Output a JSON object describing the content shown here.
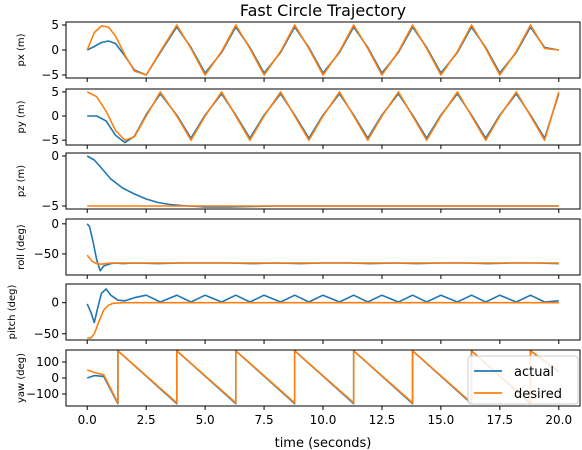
{
  "chart_data": {
    "type": "line",
    "title": "Fast Circle Trajectory",
    "xlabel": "time (seconds)",
    "x_ticks": [
      "0.0",
      "2.5",
      "5.0",
      "7.5",
      "10.0",
      "12.5",
      "15.0",
      "17.5",
      "20.0"
    ],
    "xlim": [
      -0.9,
      20.9
    ],
    "legend": {
      "placement": "bottom-right of last panel",
      "entries": [
        "actual",
        "desired"
      ]
    },
    "colors": {
      "actual": "#1f77b4",
      "desired": "#ff7f0e"
    },
    "panels": [
      {
        "id": "px",
        "ylabel": "px (m)",
        "ylim": [
          -5.6,
          5.6
        ],
        "yticks": [
          5,
          0,
          -5
        ],
        "ytick_labels": [
          "5",
          "0",
          "−5"
        ],
        "series": [
          {
            "name": "actual",
            "x": [
              0,
              0.3,
              0.6,
              0.9,
              1.2,
              1.6,
              2.0,
              2.5,
              3.1,
              3.8,
              4.4,
              5.0,
              5.7,
              6.3,
              6.9,
              7.5,
              8.2,
              8.8,
              9.4,
              10.0,
              10.7,
              11.3,
              11.9,
              12.5,
              13.2,
              13.8,
              14.4,
              15.0,
              15.7,
              16.3,
              16.9,
              17.5,
              18.2,
              18.8,
              19.4,
              20.0
            ],
            "y": [
              0.0,
              0.7,
              1.5,
              1.8,
              1.3,
              -1.2,
              -4.0,
              -5.0,
              -0.5,
              4.6,
              0.5,
              -4.6,
              -0.5,
              4.6,
              0.5,
              -4.6,
              -0.5,
              4.6,
              0.5,
              -4.6,
              -0.5,
              4.6,
              0.5,
              -4.6,
              -0.5,
              4.6,
              0.5,
              -4.6,
              -0.5,
              4.6,
              0.5,
              -4.6,
              -0.5,
              4.6,
              0.5,
              0.0
            ]
          },
          {
            "name": "desired",
            "x": [
              0,
              0.3,
              0.6,
              0.9,
              1.2,
              1.6,
              2.0,
              2.5,
              3.1,
              3.8,
              4.4,
              5.0,
              5.7,
              6.3,
              6.9,
              7.5,
              8.2,
              8.8,
              9.4,
              10.0,
              10.7,
              11.3,
              11.9,
              12.5,
              13.2,
              13.8,
              14.4,
              15.0,
              15.7,
              16.3,
              16.9,
              17.5,
              18.2,
              18.8,
              19.4,
              20.0
            ],
            "y": [
              0.0,
              3.5,
              4.8,
              4.6,
              2.8,
              -1.0,
              -4.2,
              -5.0,
              -0.3,
              5.0,
              0.3,
              -5.0,
              -0.3,
              5.0,
              0.3,
              -5.0,
              -0.3,
              5.0,
              0.3,
              -5.0,
              -0.3,
              5.0,
              0.3,
              -5.0,
              -0.3,
              5.0,
              0.3,
              -5.0,
              -0.3,
              5.0,
              0.3,
              -5.0,
              -0.3,
              5.0,
              0.3,
              0.0
            ]
          }
        ]
      },
      {
        "id": "py",
        "ylabel": "py (m)",
        "ylim": [
          -6.0,
          5.6
        ],
        "yticks": [
          5,
          0,
          -5
        ],
        "ytick_labels": [
          "5",
          "0",
          "−5"
        ],
        "series": [
          {
            "name": "actual",
            "x": [
              0,
              0.4,
              0.8,
              1.2,
              1.6,
              2.0,
              2.5,
              3.1,
              3.8,
              4.4,
              5.0,
              5.7,
              6.3,
              6.9,
              7.5,
              8.2,
              8.8,
              9.4,
              10.0,
              10.7,
              11.3,
              11.9,
              12.5,
              13.2,
              13.8,
              14.4,
              15.0,
              15.7,
              16.3,
              16.9,
              17.5,
              18.2,
              18.8,
              19.4,
              20.0
            ],
            "y": [
              0.0,
              0.0,
              -1.0,
              -4.0,
              -5.5,
              -4.2,
              0.3,
              4.6,
              0.2,
              -4.6,
              0.2,
              4.6,
              0.2,
              -4.6,
              0.2,
              4.6,
              0.2,
              -4.6,
              0.2,
              4.6,
              0.2,
              -4.6,
              0.2,
              4.6,
              0.2,
              -4.6,
              0.2,
              4.6,
              0.2,
              -4.6,
              0.2,
              4.6,
              0.2,
              -4.6,
              4.6
            ]
          },
          {
            "name": "desired",
            "x": [
              0,
              0.4,
              0.8,
              1.2,
              1.6,
              2.0,
              2.5,
              3.1,
              3.8,
              4.4,
              5.0,
              5.7,
              6.3,
              6.9,
              7.5,
              8.2,
              8.8,
              9.4,
              10.0,
              10.7,
              11.3,
              11.9,
              12.5,
              13.2,
              13.8,
              14.4,
              15.0,
              15.7,
              16.3,
              16.9,
              17.5,
              18.2,
              18.8,
              19.4,
              20.0
            ],
            "y": [
              5.0,
              4.0,
              1.0,
              -3.0,
              -5.0,
              -4.3,
              0.0,
              5.0,
              0.0,
              -5.0,
              0.0,
              5.0,
              0.0,
              -5.0,
              0.0,
              5.0,
              0.0,
              -5.0,
              0.0,
              5.0,
              0.0,
              -5.0,
              0.0,
              5.0,
              0.0,
              -5.0,
              0.0,
              5.0,
              0.0,
              -5.0,
              0.0,
              5.0,
              0.0,
              -5.0,
              5.0
            ]
          }
        ]
      },
      {
        "id": "pz",
        "ylabel": "pz (m)",
        "ylim": [
          -5.3,
          0.3
        ],
        "yticks": [
          0,
          -5
        ],
        "ytick_labels": [
          "0",
          "−5"
        ],
        "series": [
          {
            "name": "actual",
            "x": [
              0,
              0.3,
              0.6,
              1.0,
              1.5,
              2.0,
              2.5,
              3.0,
              3.5,
              4.0,
              5.0,
              6.0,
              7.0,
              8.0,
              10.0,
              12.0,
              14.0,
              16.0,
              18.0,
              20.0
            ],
            "y": [
              0.0,
              -0.4,
              -1.2,
              -2.3,
              -3.2,
              -3.8,
              -4.3,
              -4.65,
              -4.85,
              -4.95,
              -5.1,
              -5.1,
              -5.05,
              -5.0,
              -5.0,
              -5.0,
              -5.0,
              -5.0,
              -5.0,
              -5.0
            ]
          },
          {
            "name": "desired",
            "x": [
              0,
              20.0
            ],
            "y": [
              -5.0,
              -5.0
            ]
          }
        ]
      },
      {
        "id": "roll",
        "ylabel": "roll (deg)",
        "ylim": [
          -85,
          8
        ],
        "yticks": [
          0,
          -50
        ],
        "ytick_labels": [
          "0",
          "−50"
        ],
        "series": [
          {
            "name": "actual",
            "x": [
              0,
              0.1,
              0.25,
              0.4,
              0.55,
              0.7,
              0.85,
              1.0,
              1.2,
              1.5,
              2.0,
              3.0,
              4.0,
              5.0,
              6.0,
              7.0,
              8.0,
              9.0,
              10.0,
              11.0,
              12.0,
              13.0,
              14.0,
              15.0,
              16.0,
              17.0,
              18.0,
              19.0,
              20.0
            ],
            "y": [
              0,
              -5,
              -30,
              -60,
              -78,
              -70,
              -68,
              -66,
              -65,
              -66,
              -65,
              -66,
              -65,
              -65,
              -65,
              -66,
              -65,
              -66,
              -65,
              -65,
              -66,
              -65,
              -66,
              -65,
              -65,
              -66,
              -65,
              -65,
              -66
            ]
          },
          {
            "name": "desired",
            "x": [
              0,
              0.2,
              0.4,
              0.6,
              0.8,
              1.0,
              1.5,
              2.0,
              20.0
            ],
            "y": [
              -52,
              -62,
              -66,
              -67,
              -66,
              -65,
              -65,
              -65,
              -65
            ]
          }
        ]
      },
      {
        "id": "pitch",
        "ylabel": "pitch (deg)",
        "ylim": [
          -60,
          30
        ],
        "yticks": [
          0,
          -50
        ],
        "ytick_labels": [
          "0",
          "−50"
        ],
        "series": [
          {
            "name": "actual",
            "x": [
              0,
              0.15,
              0.3,
              0.45,
              0.6,
              0.8,
              1.0,
              1.3,
              1.6,
              2.0,
              2.5,
              3.1,
              3.8,
              4.4,
              5.0,
              5.7,
              6.3,
              6.9,
              7.5,
              8.2,
              8.8,
              9.4,
              10.0,
              10.7,
              11.3,
              11.9,
              12.5,
              13.2,
              13.8,
              14.4,
              15.0,
              15.7,
              16.3,
              16.9,
              17.5,
              18.2,
              18.8,
              19.4,
              20.0
            ],
            "y": [
              -2,
              -15,
              -32,
              -8,
              15,
              22,
              12,
              4,
              3,
              8,
              12,
              1,
              12,
              1,
              12,
              1,
              12,
              1,
              12,
              1,
              12,
              1,
              12,
              1,
              12,
              1,
              12,
              1,
              12,
              1,
              12,
              1,
              12,
              1,
              12,
              1,
              12,
              1,
              3
            ]
          },
          {
            "name": "desired",
            "x": [
              0,
              0.15,
              0.3,
              0.5,
              0.7,
              0.9,
              1.1,
              1.5,
              2.0,
              20.0
            ],
            "y": [
              -57,
              -57,
              -50,
              -30,
              -12,
              -4,
              -1,
              0,
              0,
              0
            ]
          }
        ]
      },
      {
        "id": "yaw",
        "ylabel": "yaw (deg)",
        "ylim": [
          -175,
          175
        ],
        "yticks": [
          100,
          0,
          -100
        ],
        "ytick_labels": [
          "100",
          "0",
          "−100"
        ],
        "series": [
          {
            "name": "actual",
            "x": [
              0,
              0.3,
              0.7,
              1.3,
              1.3,
              3.8,
              3.8,
              6.3,
              6.3,
              8.8,
              8.8,
              11.3,
              11.3,
              13.8,
              13.8,
              16.3,
              16.3,
              18.8,
              18.8,
              20.0
            ],
            "y": [
              0,
              15,
              10,
              -160,
              170,
              -160,
              170,
              -160,
              170,
              -160,
              170,
              -160,
              170,
              -160,
              170,
              -160,
              170,
              -160,
              170,
              40
            ]
          },
          {
            "name": "desired",
            "x": [
              0,
              0.3,
              0.7,
              1.3,
              1.3,
              3.8,
              3.8,
              6.3,
              6.3,
              8.8,
              8.8,
              11.3,
              11.3,
              13.8,
              13.8,
              16.3,
              16.3,
              18.8,
              18.8,
              20.0
            ],
            "y": [
              50,
              35,
              20,
              -155,
              170,
              -155,
              170,
              -155,
              170,
              -155,
              170,
              -155,
              170,
              -155,
              170,
              -155,
              170,
              -155,
              170,
              45
            ]
          }
        ]
      }
    ]
  }
}
